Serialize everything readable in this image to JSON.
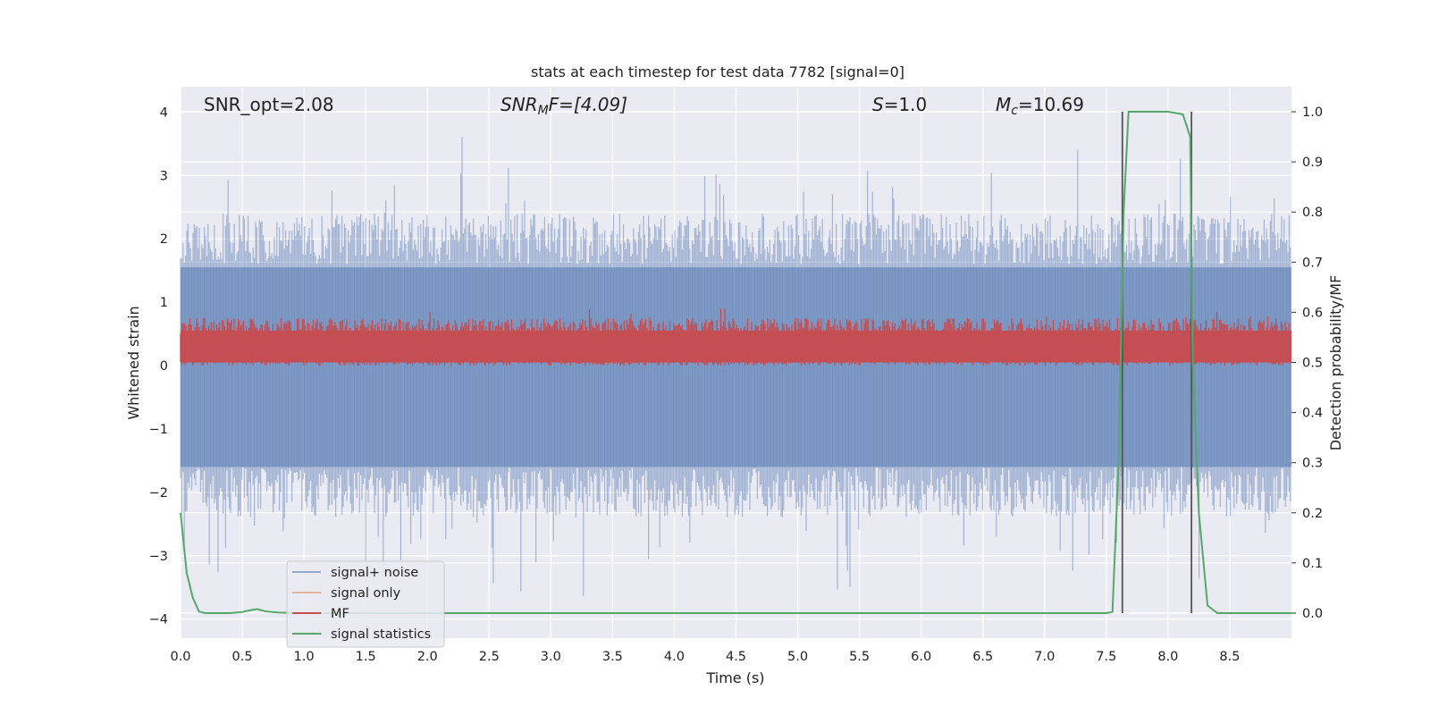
{
  "chart_data": {
    "type": "line",
    "title": "stats at each timestep for test data 7782 [signal=0]",
    "xlabel": "Time (s)",
    "ylabel": "Whitened strain",
    "y2label": "Detection probability/MF",
    "xlim": [
      0,
      9.0
    ],
    "ylim": [
      -4.3,
      4.4
    ],
    "y2lim": [
      -0.05,
      1.05
    ],
    "xticks": [
      "0.0",
      "0.5",
      "1.0",
      "1.5",
      "2.0",
      "2.5",
      "3.0",
      "3.5",
      "4.0",
      "4.5",
      "5.0",
      "5.5",
      "6.0",
      "6.5",
      "7.0",
      "7.5",
      "8.0",
      "8.5"
    ],
    "yticks": [
      "4",
      "3",
      "2",
      "1",
      "0",
      "−1",
      "−2",
      "−3",
      "−4"
    ],
    "y2ticks": [
      "1.0",
      "0.9",
      "0.8",
      "0.7",
      "0.6",
      "0.5",
      "0.4",
      "0.3",
      "0.2",
      "0.1",
      "0.0"
    ],
    "grid": true,
    "legend_position": "lower-left",
    "annotations": {
      "snr_opt": "SNR_opt=2.08",
      "snr_mf_base": "SNR",
      "snr_mf_sub": "M",
      "snr_mf_rest": "F=[4.09]",
      "s_sym": "S",
      "s_val": "=1.0",
      "mc_sym": "M",
      "mc_sub": "c",
      "mc_val": "=10.69"
    },
    "vlines_x": [
      7.63,
      8.19
    ],
    "series": [
      {
        "name": "signal+ noise",
        "color": "#4c72b0",
        "axis": "left",
        "description_envelope": "dense noise roughly between -2.5 and 2.5 with spikes to ±3.6"
      },
      {
        "name": "signal only",
        "color": "#dd8452",
        "axis": "left"
      },
      {
        "name": "MF",
        "color": "#c44e52",
        "axis": "left",
        "description_envelope": "dense band between 0.0 and 0.8, spikes to ~1.0"
      },
      {
        "name": "signal statistics",
        "color": "#55a868",
        "axis": "right",
        "x": [
          0.0,
          0.05,
          0.1,
          0.15,
          0.2,
          0.3,
          0.4,
          0.5,
          0.55,
          0.62,
          0.7,
          0.8,
          1.0,
          2.0,
          3.0,
          4.0,
          5.0,
          6.0,
          7.0,
          7.5,
          7.55,
          7.6,
          7.64,
          7.68,
          7.7,
          8.0,
          8.12,
          8.18,
          8.2,
          8.25,
          8.32,
          8.4,
          8.5,
          9.0
        ],
        "y": [
          0.2,
          0.08,
          0.03,
          0.003,
          0.0,
          0.0,
          0.0,
          0.002,
          0.005,
          0.008,
          0.003,
          0.001,
          0.0,
          0.0,
          0.0,
          0.0,
          0.0,
          0.0,
          0.0,
          0.0,
          0.002,
          0.3,
          0.8,
          1.0,
          1.0,
          1.0,
          0.995,
          0.95,
          0.5,
          0.2,
          0.015,
          0.0,
          0.0,
          0.0
        ]
      }
    ]
  }
}
